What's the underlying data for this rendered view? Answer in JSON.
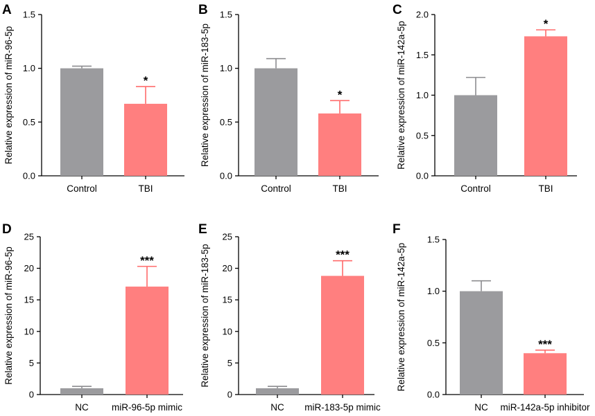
{
  "colors": {
    "control": "#9b9b9e",
    "treatment": "#ff7f7f",
    "control_err": "#8c8c8f",
    "treatment_err": "#ff6b6b"
  },
  "chart_data": [
    {
      "panel": "A",
      "type": "bar",
      "ylabel": "Relative expression of miR-96-5p",
      "ylim": [
        0,
        1.5
      ],
      "ticks": [
        "0.0",
        "0.5",
        "1.0",
        "1.5"
      ],
      "categories": [
        "Control",
        "TBI"
      ],
      "values": [
        1.0,
        0.67
      ],
      "errors": [
        0.02,
        0.16
      ],
      "significance": [
        "",
        "*"
      ]
    },
    {
      "panel": "B",
      "type": "bar",
      "ylabel": "Relative expression of miR-183-5p",
      "ylim": [
        0,
        1.5
      ],
      "ticks": [
        "0.0",
        "0.5",
        "1.0",
        "1.5"
      ],
      "categories": [
        "Control",
        "TBI"
      ],
      "values": [
        1.0,
        0.58
      ],
      "errors": [
        0.09,
        0.12
      ],
      "significance": [
        "",
        "*"
      ]
    },
    {
      "panel": "C",
      "type": "bar",
      "ylabel": "Relative expression of miR-142a-5p",
      "ylim": [
        0,
        2.0
      ],
      "ticks": [
        "0.0",
        "0.5",
        "1.0",
        "1.5",
        "2.0"
      ],
      "categories": [
        "Control",
        "TBI"
      ],
      "values": [
        1.0,
        1.73
      ],
      "errors": [
        0.22,
        0.08
      ],
      "significance": [
        "",
        "*"
      ]
    },
    {
      "panel": "D",
      "type": "bar",
      "ylabel": "Relative expression of miR-96-5p",
      "ylim": [
        0,
        25
      ],
      "ticks": [
        "0",
        "5",
        "10",
        "15",
        "20",
        "25"
      ],
      "categories": [
        "NC",
        "miR-96-5p mimic"
      ],
      "values": [
        1.0,
        17.1
      ],
      "errors": [
        0.3,
        3.2
      ],
      "significance": [
        "",
        "***"
      ]
    },
    {
      "panel": "E",
      "type": "bar",
      "ylabel": "Relative expression of miR-183-5p",
      "ylim": [
        0,
        25
      ],
      "ticks": [
        "0",
        "5",
        "10",
        "15",
        "20",
        "25"
      ],
      "categories": [
        "NC",
        "miR-183-5p mimic"
      ],
      "values": [
        1.0,
        18.8
      ],
      "errors": [
        0.3,
        2.4
      ],
      "significance": [
        "",
        "***"
      ]
    },
    {
      "panel": "F",
      "type": "bar",
      "ylabel": "Relative expression of miR-142a-5p",
      "ylim": [
        0,
        1.5
      ],
      "ticks": [
        "0.0",
        "0.5",
        "1.0",
        "1.5"
      ],
      "categories": [
        "NC",
        "miR-142a-5p inhibitor"
      ],
      "values": [
        1.0,
        0.4
      ],
      "errors": [
        0.1,
        0.03
      ],
      "significance": [
        "",
        "***"
      ]
    }
  ]
}
